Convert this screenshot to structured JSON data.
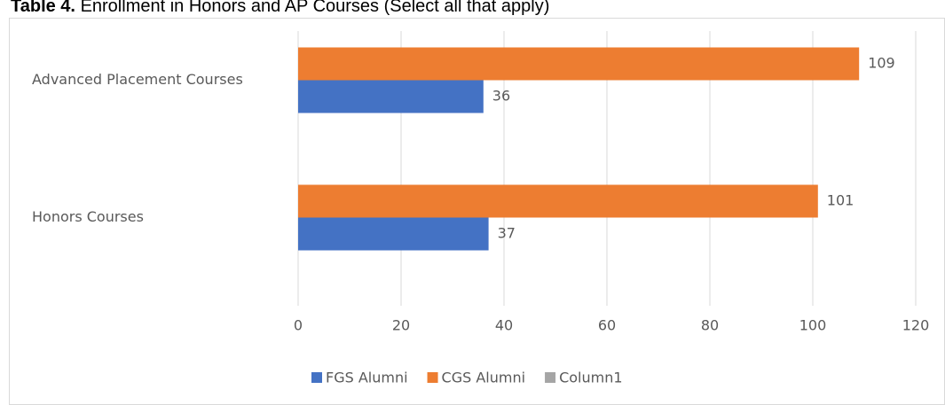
{
  "chart_data": {
    "type": "bar",
    "orientation": "horizontal",
    "title_label": "Table 4.",
    "title": "Enrollment in Honors and AP Courses (Select all that apply)",
    "categories": [
      "Advanced Placement Courses",
      "Honors Courses"
    ],
    "series": [
      {
        "name": "FGS Alumni",
        "color": "#4472c4",
        "values": [
          36,
          37
        ]
      },
      {
        "name": "CGS Alumni",
        "color": "#ed7d31",
        "values": [
          109,
          101
        ]
      },
      {
        "name": "Column1",
        "color": "#a5a5a5",
        "values": [
          null,
          null
        ]
      }
    ],
    "xlim": [
      0,
      120
    ],
    "xticks": [
      0,
      20,
      40,
      60,
      80,
      100,
      120
    ],
    "grid": true,
    "legend": "bottom"
  }
}
